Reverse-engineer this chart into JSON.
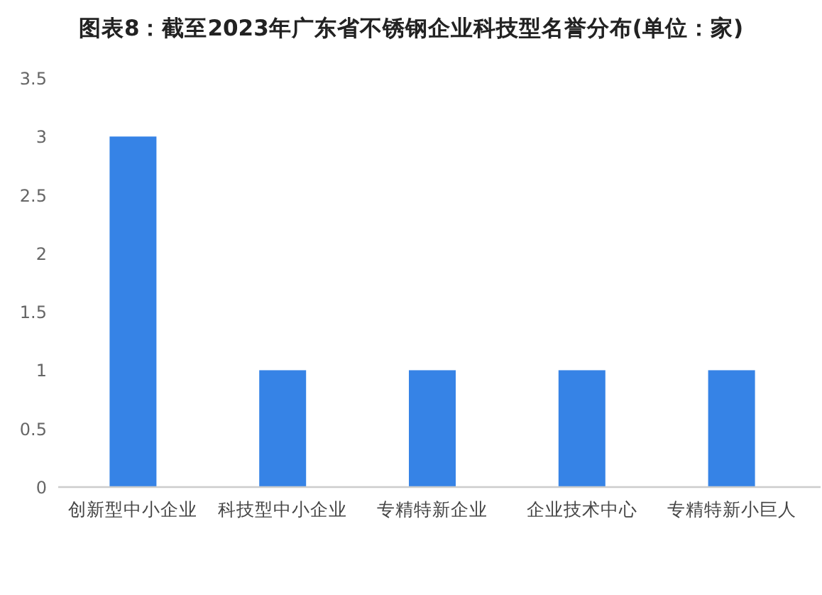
{
  "chart_data": {
    "type": "bar",
    "title": "图表8：截至2023年广东省不锈钢企业科技型名誉分布(单位：家)",
    "categories": [
      "创新型中小企业",
      "科技型中小企业",
      "专精特新企业",
      "企业技术中心",
      "专精特新小巨人"
    ],
    "values": [
      3,
      1,
      1,
      1,
      1
    ],
    "color": "#3683e6",
    "ylim": [
      0,
      3.5
    ],
    "yticks": [
      0,
      0.5,
      1,
      1.5,
      2,
      2.5,
      3,
      3.5
    ],
    "grid": false
  }
}
